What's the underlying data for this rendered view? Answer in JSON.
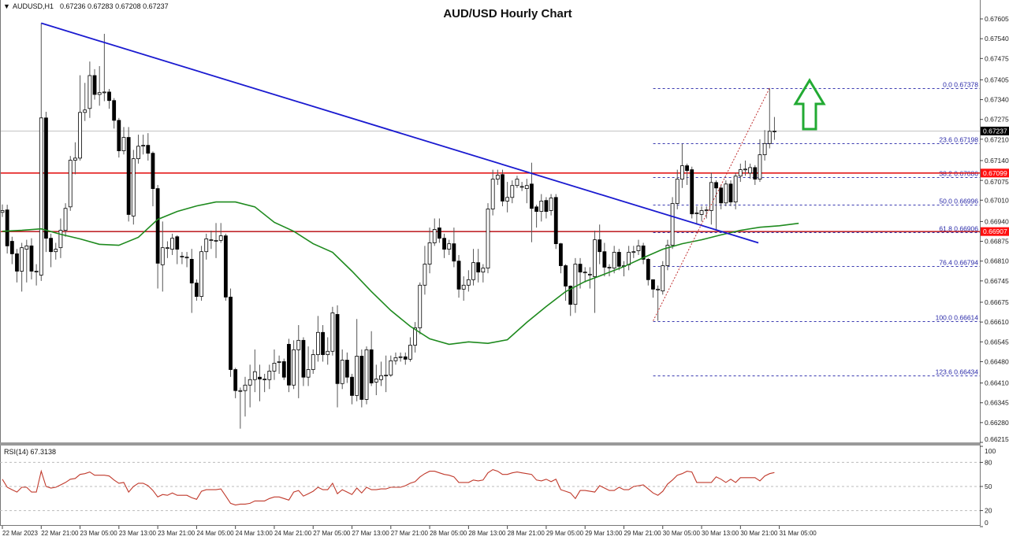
{
  "header": {
    "symbol": "AUDUSD,H1",
    "ohlc": "0.67236 0.67283 0.67208 0.67237",
    "menu_icon": "triangle-down-icon"
  },
  "chart_data": {
    "type": "candlestick",
    "title": "AUD/USD Hourly Chart",
    "ylim": [
      0.66215,
      0.67605
    ],
    "grid": false,
    "y_ticks": [
      "0.67605",
      "0.67540",
      "0.67475",
      "0.67405",
      "0.67340",
      "0.67275",
      "0.67210",
      "0.67140",
      "0.67075",
      "0.67010",
      "0.66940",
      "0.66875",
      "0.66810",
      "0.66745",
      "0.66675",
      "0.66610",
      "0.66545",
      "0.66480",
      "0.66410",
      "0.66345",
      "0.66280",
      "0.66215"
    ],
    "x_ticks": [
      "22 Mar 2023",
      "22 Mar 21:00",
      "23 Mar 05:00",
      "23 Mar 13:00",
      "23 Mar 21:00",
      "24 Mar 05:00",
      "24 Mar 13:00",
      "24 Mar 21:00",
      "27 Mar 05:00",
      "27 Mar 13:00",
      "27 Mar 21:00",
      "28 Mar 05:00",
      "28 Mar 13:00",
      "28 Mar 21:00",
      "29 Mar 05:00",
      "29 Mar 13:00",
      "29 Mar 21:00",
      "30 Mar 05:00",
      "30 Mar 13:00",
      "30 Mar 21:00",
      "31 Mar 05:00"
    ],
    "candles_ohlc": [
      [
        0.6697,
        0.66996,
        0.66955,
        0.66976
      ],
      [
        0.66978,
        0.66995,
        0.66835,
        0.6686
      ],
      [
        0.66875,
        0.6689,
        0.668,
        0.66834
      ],
      [
        0.66834,
        0.6685,
        0.6674,
        0.66777
      ],
      [
        0.66777,
        0.6687,
        0.6671,
        0.66854
      ],
      [
        0.66849,
        0.6688,
        0.6674,
        0.6686
      ],
      [
        0.6686,
        0.66885,
        0.6675,
        0.66777
      ],
      [
        0.66777,
        0.668,
        0.6673,
        0.66777
      ],
      [
        0.66764,
        0.67591,
        0.66745,
        0.6728
      ],
      [
        0.6728,
        0.673,
        0.6684,
        0.66885
      ],
      [
        0.66885,
        0.669,
        0.6679,
        0.66841
      ],
      [
        0.66841,
        0.6687,
        0.66815,
        0.66849
      ],
      [
        0.66854,
        0.6695,
        0.6682,
        0.66911
      ],
      [
        0.66911,
        0.67,
        0.6689,
        0.66983
      ],
      [
        0.66988,
        0.67155,
        0.66975,
        0.67141
      ],
      [
        0.67141,
        0.672,
        0.67095,
        0.67148
      ],
      [
        0.67148,
        0.6742,
        0.6714,
        0.67298
      ],
      [
        0.67298,
        0.67395,
        0.6727,
        0.67306
      ],
      [
        0.67311,
        0.67465,
        0.6728,
        0.67419
      ],
      [
        0.67419,
        0.6744,
        0.6734,
        0.67357
      ],
      [
        0.67357,
        0.6745,
        0.6732,
        0.67363
      ],
      [
        0.67365,
        0.67556,
        0.67335,
        0.67365
      ],
      [
        0.67365,
        0.67375,
        0.6731,
        0.67337
      ],
      [
        0.67337,
        0.67345,
        0.67245,
        0.67272
      ],
      [
        0.67272,
        0.6728,
        0.6715,
        0.67172
      ],
      [
        0.67172,
        0.6725,
        0.6716,
        0.67216
      ],
      [
        0.67216,
        0.6725,
        0.6694,
        0.66963
      ],
      [
        0.66958,
        0.67175,
        0.6693,
        0.67146
      ],
      [
        0.67146,
        0.67225,
        0.6713,
        0.67187
      ],
      [
        0.6719,
        0.67225,
        0.6716,
        0.6719
      ],
      [
        0.6719,
        0.6723,
        0.6714,
        0.67164
      ],
      [
        0.67164,
        0.6717,
        0.6699,
        0.67048
      ],
      [
        0.67048,
        0.6706,
        0.6672,
        0.66803
      ],
      [
        0.66798,
        0.6694,
        0.6671,
        0.66854
      ],
      [
        0.66854,
        0.66875,
        0.6682,
        0.66854
      ],
      [
        0.66849,
        0.669,
        0.6683,
        0.66885
      ],
      [
        0.6689,
        0.66895,
        0.668,
        0.66849
      ],
      [
        0.66826,
        0.6684,
        0.668,
        0.66826
      ],
      [
        0.66823,
        0.6684,
        0.6679,
        0.66823
      ],
      [
        0.66816,
        0.6685,
        0.6664,
        0.66738
      ],
      [
        0.66738,
        0.6675,
        0.6668,
        0.66694
      ],
      [
        0.66694,
        0.6686,
        0.6668,
        0.66841
      ],
      [
        0.66841,
        0.669,
        0.66815,
        0.66883
      ],
      [
        0.6688,
        0.6691,
        0.6685,
        0.6688
      ],
      [
        0.66878,
        0.66935,
        0.6682,
        0.66878
      ],
      [
        0.66878,
        0.66935,
        0.6687,
        0.66893
      ],
      [
        0.66893,
        0.669,
        0.6668,
        0.66692
      ],
      [
        0.66692,
        0.6672,
        0.6643,
        0.66454
      ],
      [
        0.66454,
        0.6646,
        0.6636,
        0.66385
      ],
      [
        0.66385,
        0.66395,
        0.6626,
        0.66385
      ],
      [
        0.66385,
        0.6643,
        0.663,
        0.66403
      ],
      [
        0.66403,
        0.6647,
        0.6633,
        0.66421
      ],
      [
        0.66421,
        0.6652,
        0.6638,
        0.66447
      ],
      [
        0.66429,
        0.6647,
        0.6635,
        0.66423
      ],
      [
        0.66423,
        0.6644,
        0.6638,
        0.66423
      ],
      [
        0.66421,
        0.6647,
        0.6639,
        0.66449
      ],
      [
        0.66449,
        0.6652,
        0.6642,
        0.66475
      ],
      [
        0.6648,
        0.665,
        0.6644,
        0.6648
      ],
      [
        0.6648,
        0.6649,
        0.6642,
        0.66429
      ],
      [
        0.66537,
        0.66555,
        0.6638,
        0.66403
      ],
      [
        0.66403,
        0.6655,
        0.6639,
        0.66519
      ],
      [
        0.66519,
        0.666,
        0.6636,
        0.6655
      ],
      [
        0.6655,
        0.6656,
        0.664,
        0.66429
      ],
      [
        0.66429,
        0.6653,
        0.664,
        0.66454
      ],
      [
        0.66454,
        0.6652,
        0.6644,
        0.66503
      ],
      [
        0.66503,
        0.6663,
        0.6648,
        0.66576
      ],
      [
        0.66576,
        0.666,
        0.6648,
        0.66503
      ],
      [
        0.66503,
        0.6656,
        0.6647,
        0.66514
      ],
      [
        0.66514,
        0.6666,
        0.665,
        0.6664
      ],
      [
        0.66635,
        0.66665,
        0.6633,
        0.66408
      ],
      [
        0.66408,
        0.6652,
        0.6639,
        0.66485
      ],
      [
        0.66485,
        0.6651,
        0.6641,
        0.66429
      ],
      [
        0.66429,
        0.6644,
        0.6634,
        0.66369
      ],
      [
        0.66369,
        0.6662,
        0.6635,
        0.66498
      ],
      [
        0.66498,
        0.6652,
        0.6633,
        0.66356
      ],
      [
        0.66356,
        0.6653,
        0.6634,
        0.66519
      ],
      [
        0.66519,
        0.6658,
        0.664,
        0.6641
      ],
      [
        0.66413,
        0.6647,
        0.6637,
        0.66423
      ],
      [
        0.66421,
        0.6648,
        0.664,
        0.66434
      ],
      [
        0.66436,
        0.665,
        0.6638,
        0.66436
      ],
      [
        0.66436,
        0.665,
        0.6643,
        0.66483
      ],
      [
        0.66483,
        0.6651,
        0.6647,
        0.66493
      ],
      [
        0.66496,
        0.6651,
        0.6648,
        0.66496
      ],
      [
        0.66496,
        0.6651,
        0.6647,
        0.66488
      ],
      [
        0.66488,
        0.6656,
        0.6648,
        0.66534
      ],
      [
        0.66534,
        0.6661,
        0.6651,
        0.66591
      ],
      [
        0.66591,
        0.6674,
        0.6657,
        0.66731
      ],
      [
        0.66731,
        0.6686,
        0.667,
        0.668
      ],
      [
        0.668,
        0.6692,
        0.6677,
        0.6687
      ],
      [
        0.6687,
        0.6695,
        0.6686,
        0.66914
      ],
      [
        0.66919,
        0.6695,
        0.6687,
        0.66885
      ],
      [
        0.66885,
        0.669,
        0.6682,
        0.66849
      ],
      [
        0.66849,
        0.6688,
        0.6683,
        0.66867
      ],
      [
        0.66867,
        0.6692,
        0.6679,
        0.6681
      ],
      [
        0.6681,
        0.6683,
        0.6669,
        0.66718
      ],
      [
        0.66718,
        0.6676,
        0.6668,
        0.66731
      ],
      [
        0.66731,
        0.6678,
        0.6671,
        0.66749
      ],
      [
        0.66749,
        0.6685,
        0.6673,
        0.66805
      ],
      [
        0.66805,
        0.6685,
        0.6674,
        0.66774
      ],
      [
        0.66774,
        0.668,
        0.6674,
        0.66787
      ],
      [
        0.66787,
        0.67,
        0.6677,
        0.66981
      ],
      [
        0.66981,
        0.6711,
        0.6696,
        0.67079
      ],
      [
        0.67079,
        0.6711,
        0.6706,
        0.67092
      ],
      [
        0.67094,
        0.6711,
        0.6699,
        0.67007
      ],
      [
        0.67007,
        0.6707,
        0.6697,
        0.67019
      ],
      [
        0.67019,
        0.67075,
        0.67,
        0.67058
      ],
      [
        0.67058,
        0.6709,
        0.6705,
        0.67079
      ],
      [
        0.67055,
        0.6707,
        0.6704,
        0.67055
      ],
      [
        0.67048,
        0.6708,
        0.67,
        0.67058
      ],
      [
        0.67063,
        0.67133,
        0.66872,
        0.66983
      ],
      [
        0.66988,
        0.66995,
        0.6692,
        0.66973
      ],
      [
        0.66973,
        0.6703,
        0.6694,
        0.67007
      ],
      [
        0.67009,
        0.6702,
        0.6695,
        0.66973
      ],
      [
        0.66976,
        0.6703,
        0.6696,
        0.67017
      ],
      [
        0.67019,
        0.6703,
        0.6685,
        0.66867
      ],
      [
        0.66867,
        0.6687,
        0.6677,
        0.66795
      ],
      [
        0.66795,
        0.668,
        0.6668,
        0.66728
      ],
      [
        0.66728,
        0.6673,
        0.6663,
        0.66668
      ],
      [
        0.66668,
        0.6682,
        0.6664,
        0.668
      ],
      [
        0.668,
        0.6682,
        0.6672,
        0.66774
      ],
      [
        0.66774,
        0.6679,
        0.6674,
        0.66774
      ],
      [
        0.66767,
        0.6679,
        0.6672,
        0.66767
      ],
      [
        0.66759,
        0.6691,
        0.6664,
        0.6688
      ],
      [
        0.6688,
        0.6693,
        0.668,
        0.66841
      ],
      [
        0.66841,
        0.6687,
        0.6676,
        0.6679
      ],
      [
        0.6679,
        0.668,
        0.6676,
        0.6679
      ],
      [
        0.66787,
        0.6686,
        0.6677,
        0.66839
      ],
      [
        0.66839,
        0.6685,
        0.6678,
        0.66793
      ],
      [
        0.66793,
        0.6681,
        0.6676,
        0.66795
      ],
      [
        0.66798,
        0.6686,
        0.6678,
        0.66839
      ],
      [
        0.66841,
        0.6686,
        0.6682,
        0.66841
      ],
      [
        0.66844,
        0.6688,
        0.6683,
        0.6686
      ],
      [
        0.6686,
        0.6687,
        0.668,
        0.66816
      ],
      [
        0.66816,
        0.6682,
        0.6673,
        0.66749
      ],
      [
        0.66749,
        0.6675,
        0.6669,
        0.66718
      ],
      [
        0.66718,
        0.6673,
        0.66614,
        0.66718
      ],
      [
        0.66712,
        0.6681,
        0.667,
        0.66795
      ],
      [
        0.66795,
        0.6688,
        0.6678,
        0.66862
      ],
      [
        0.66862,
        0.6702,
        0.6685,
        0.66999
      ],
      [
        0.66999,
        0.6711,
        0.6698,
        0.67079
      ],
      [
        0.67079,
        0.67195,
        0.6705,
        0.67123
      ],
      [
        0.67123,
        0.6713,
        0.6706,
        0.67107
      ],
      [
        0.6711,
        0.6712,
        0.6695,
        0.66965
      ],
      [
        0.66968,
        0.6699,
        0.6693,
        0.66968
      ],
      [
        0.66963,
        0.6699,
        0.6694,
        0.66976
      ],
      [
        0.66976,
        0.6699,
        0.6695,
        0.66978
      ],
      [
        0.66976,
        0.671,
        0.6693,
        0.67068
      ],
      [
        0.67068,
        0.67075,
        0.6691,
        0.6705
      ],
      [
        0.6705,
        0.6706,
        0.6698,
        0.67001
      ],
      [
        0.67001,
        0.67075,
        0.6699,
        0.67063
      ],
      [
        0.67063,
        0.67075,
        0.6699,
        0.67004
      ],
      [
        0.67004,
        0.671,
        0.6698,
        0.67089
      ],
      [
        0.67089,
        0.6713,
        0.6707,
        0.6711
      ],
      [
        0.67112,
        0.6714,
        0.6709,
        0.67112
      ],
      [
        0.67099,
        0.6713,
        0.6708,
        0.67117
      ],
      [
        0.67117,
        0.67125,
        0.6706,
        0.67079
      ],
      [
        0.67079,
        0.6721,
        0.6707,
        0.67159
      ],
      [
        0.67159,
        0.6724,
        0.6714,
        0.67196
      ],
      [
        0.67196,
        0.67378,
        0.6718,
        0.67236
      ],
      [
        0.67236,
        0.67283,
        0.67208,
        0.67237
      ]
    ],
    "moving_average": {
      "color": "#1e8a1e",
      "values": [
        0.66908,
        0.66911,
        0.66916,
        0.66898,
        0.66883,
        0.66865,
        0.66862,
        0.66888,
        0.66947,
        0.66973,
        0.66991,
        0.67004,
        0.67004,
        0.66988,
        0.66937,
        0.66908,
        0.66867,
        0.66839,
        0.66777,
        0.6671,
        0.66648,
        0.66596,
        0.66555,
        0.66537,
        0.66545,
        0.6654,
        0.66552,
        0.66609,
        0.66661,
        0.6671,
        0.66743,
        0.66767,
        0.66792,
        0.66821,
        0.66849,
        0.66867,
        0.6688,
        0.66896,
        0.66911,
        0.66921,
        0.66926,
        0.66934
      ]
    },
    "trendline": {
      "color": "#1a1ad0",
      "from": {
        "bar": 8,
        "price": 0.67591
      },
      "to": {
        "bar": 155.7,
        "price": 0.6687
      }
    },
    "horizontal_lines": [
      {
        "price": 0.67099,
        "color": "#e41b1b",
        "label": "0.67099"
      },
      {
        "price": 0.66907,
        "color": "#c0282d",
        "label": "0.66907"
      }
    ],
    "current_price": {
      "price": 0.67237,
      "label": "0.67237"
    },
    "fibonacci": {
      "from": {
        "bar": 135,
        "price": 0.66614
      },
      "to": {
        "bar": 158,
        "price": 0.67378
      },
      "levels": [
        {
          "label": "0.0 0.67378",
          "price": 0.67378
        },
        {
          "label": "23.6 0.67198",
          "price": 0.67198
        },
        {
          "label": "38.2 0.67086",
          "price": 0.67086
        },
        {
          "label": "50.0 0.66996",
          "price": 0.66996
        },
        {
          "label": "61.8 0.66906",
          "price": 0.66906
        },
        {
          "label": "76.4 0.66794",
          "price": 0.66794
        },
        {
          "label": "100.0 0.66614",
          "price": 0.66614
        },
        {
          "label": "123.6 0.66434",
          "price": 0.66434
        }
      ]
    },
    "annotation_arrow": {
      "icon": "up-arrow-icon",
      "color": "#22aa33"
    },
    "rsi": {
      "label": "RSI(14) 67.3138",
      "ylim": [
        0,
        100
      ],
      "levels": [
        80,
        50,
        20
      ],
      "y_ticks": [
        "100",
        "80",
        "50",
        "20",
        "0"
      ],
      "color": "#c0392b",
      "values": [
        59,
        49,
        46,
        43,
        49,
        49,
        43,
        43,
        69,
        50,
        48,
        49,
        52,
        55,
        59,
        60,
        65,
        66,
        68,
        64,
        64,
        64,
        63,
        58,
        54,
        55,
        43,
        50,
        54,
        54,
        51,
        45,
        37,
        40,
        39,
        42,
        39,
        39,
        39,
        36,
        34,
        44,
        46,
        46,
        46,
        47,
        38,
        29,
        27,
        28,
        28,
        29,
        32,
        32,
        32,
        35,
        37,
        37,
        35,
        33,
        43,
        45,
        38,
        41,
        44,
        49,
        46,
        46,
        54,
        41,
        46,
        43,
        40,
        48,
        42,
        49,
        46,
        46,
        47,
        47,
        49,
        49,
        49,
        51,
        54,
        56,
        62,
        66,
        69,
        69,
        67,
        65,
        64,
        62,
        55,
        55,
        55,
        58,
        57,
        58,
        67,
        71,
        69,
        65,
        65,
        67,
        68,
        67,
        66,
        65,
        58,
        57,
        59,
        56,
        59,
        46,
        44,
        42,
        35,
        45,
        45,
        44,
        43,
        51,
        48,
        45,
        45,
        49,
        46,
        46,
        50,
        51,
        52,
        47,
        42,
        39,
        44,
        53,
        58,
        64,
        66,
        69,
        68,
        55,
        55,
        55,
        55,
        62,
        59,
        55,
        59,
        55,
        61,
        61,
        61,
        61,
        57,
        63,
        66,
        67.31
      ]
    }
  }
}
